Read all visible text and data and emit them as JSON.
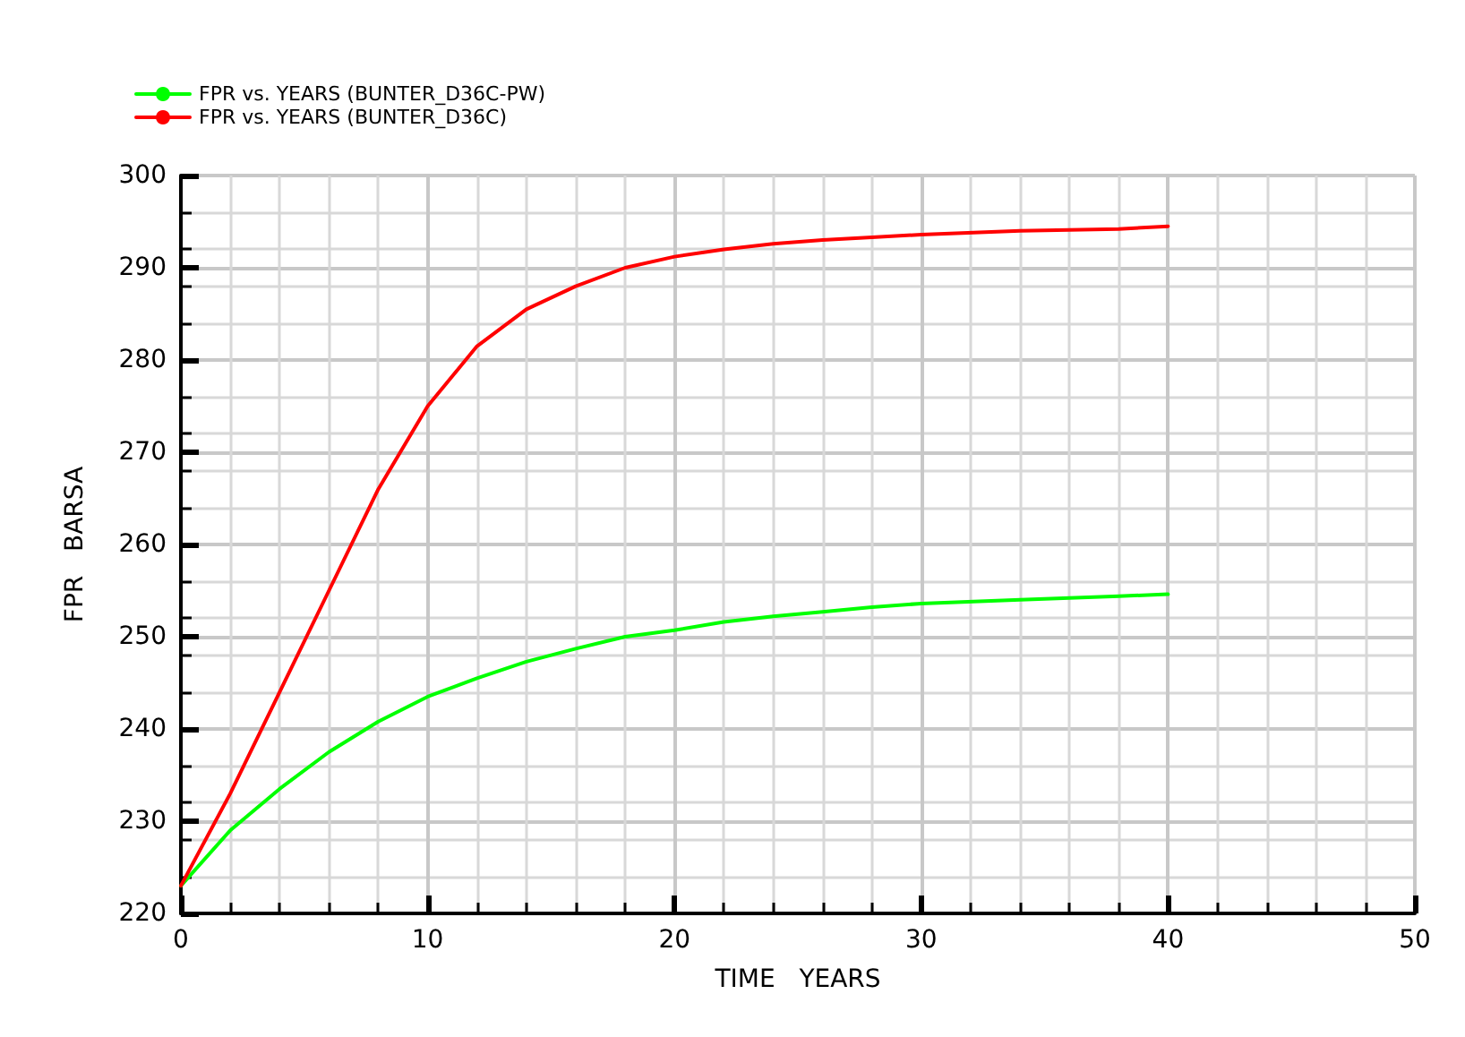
{
  "chart_data": {
    "type": "line",
    "xlabel": "TIME   YEARS",
    "ylabel": "FPR   BARSA",
    "x": [
      0,
      2,
      4,
      6,
      8,
      10,
      12,
      14,
      16,
      18,
      20,
      22,
      24,
      26,
      28,
      30,
      34,
      38,
      40
    ],
    "series": [
      {
        "name": "FPR vs. YEARS (BUNTER_D36C-PW)",
        "color": "#00ff00",
        "values": [
          223,
          229,
          233.5,
          237.5,
          240.8,
          243.5,
          245.5,
          247.3,
          248.7,
          250,
          250.7,
          251.6,
          252.2,
          252.7,
          253.2,
          253.6,
          254,
          254.4,
          254.6
        ]
      },
      {
        "name": "FPR vs. YEARS (BUNTER_D36C)",
        "color": "#ff0000",
        "values": [
          223,
          233,
          244,
          255,
          266,
          275,
          281.5,
          285.5,
          288,
          290,
          291.2,
          292,
          292.6,
          293,
          293.3,
          293.6,
          294,
          294.2,
          294.5
        ]
      }
    ],
    "xlim": [
      0,
      50
    ],
    "xticks": [
      0,
      10,
      20,
      30,
      40,
      50
    ],
    "ylim": [
      220,
      300
    ],
    "yticks": [
      220,
      230,
      240,
      250,
      260,
      270,
      280,
      290,
      300
    ],
    "grid": true,
    "legend": "top left",
    "marker": "none",
    "line_style": "solid"
  }
}
